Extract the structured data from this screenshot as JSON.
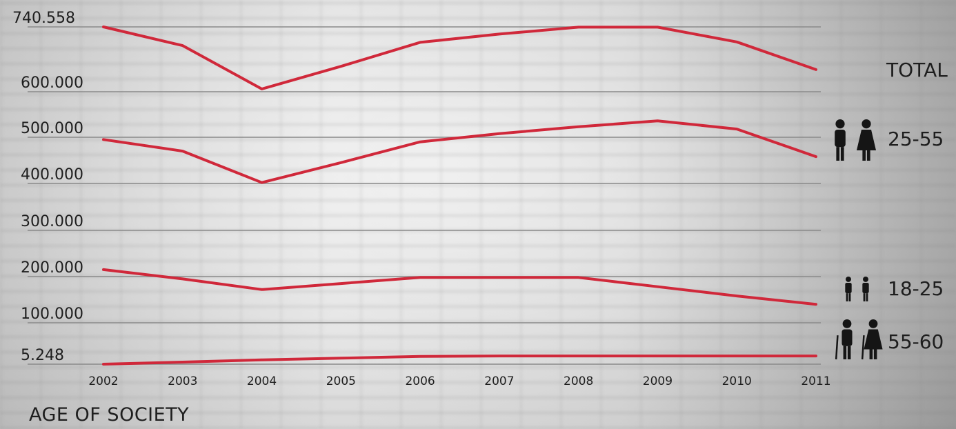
{
  "chart_data": {
    "type": "line",
    "title": "AGE OF SOCIETY",
    "xlabel": "",
    "ylabel": "",
    "x": [
      "2002",
      "2003",
      "2004",
      "2005",
      "2006",
      "2007",
      "2008",
      "2009",
      "2010",
      "2011"
    ],
    "y_ticks": [
      "740.558",
      "600.000",
      "500.000",
      "400.000",
      "300.000",
      "200.000",
      "100.000",
      "5.248"
    ],
    "grid": true,
    "legend": "right",
    "line_color": "#d0283a",
    "series": [
      {
        "name": "TOTAL",
        "icon": "",
        "values": [
          740558,
          700000,
          606000,
          655000,
          707000,
          725000,
          740000,
          740000,
          708000,
          648000
        ]
      },
      {
        "name": "25-55",
        "icon": "man-woman-icon",
        "values": [
          495000,
          470000,
          402000,
          445000,
          490000,
          508000,
          523000,
          536000,
          518000,
          458000
        ]
      },
      {
        "name": "18-25",
        "icon": "two-youths-icon",
        "values": [
          215000,
          195000,
          172000,
          185000,
          198000,
          198000,
          198000,
          178000,
          158000,
          140000
        ]
      },
      {
        "name": "55-60",
        "icon": "elderly-couple-icon",
        "values": [
          5248,
          10000,
          15000,
          19000,
          23000,
          24000,
          24000,
          24000,
          24000,
          24000
        ]
      }
    ]
  }
}
